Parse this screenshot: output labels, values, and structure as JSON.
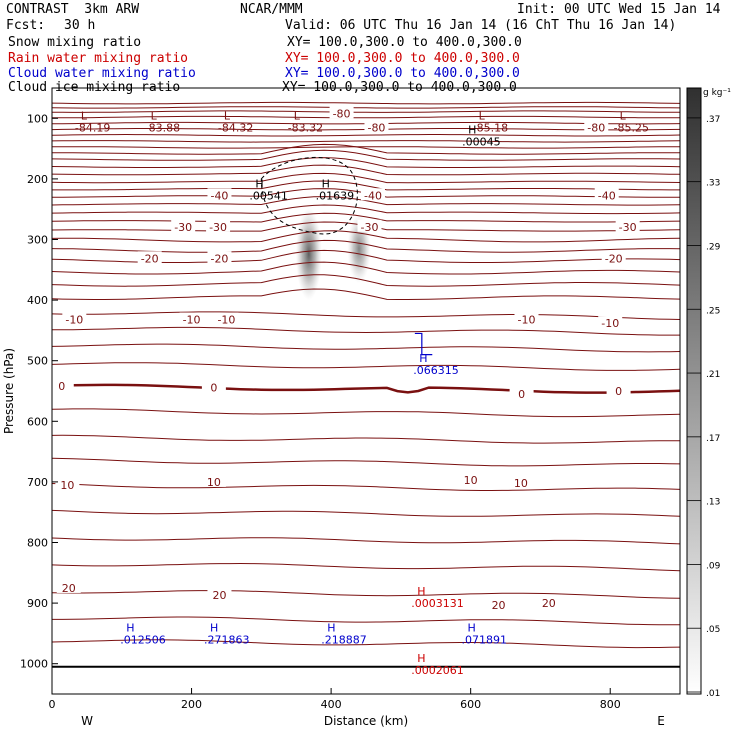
{
  "header": {
    "model": "CONTRAST  3km ARW",
    "center": "NCAR/MMM",
    "init": "Init: 00 UTC Wed 15 Jan 14",
    "fcst_label": "Fcst:",
    "fcst_value": "30 h",
    "valid": "Valid: 06 UTC Thu 16 Jan 14 (16 ChT Thu 16 Jan 14)"
  },
  "fields": [
    {
      "name": "Snow mixing ratio",
      "xy": "XY= 100.0,300.0 to 400.0,300.0",
      "color": "#000000"
    },
    {
      "name": "Rain water mixing ratio",
      "xy": "XY= 100.0,300.0 to 400.0,300.0",
      "color": "#cc0000"
    },
    {
      "name": "Cloud water mixing ratio",
      "xy": "XY= 100.0,300.0 to 400.0,300.0",
      "color": "#0000cc"
    },
    {
      "name": "Cloud ice mixing ratio",
      "xy": "XY= 100.0,300.0 to 400.0,300.0",
      "color": "#000000"
    }
  ],
  "colors": {
    "temperature": "#7a1010",
    "rain": "#cc0000",
    "cloud_water": "#0000cc",
    "ice": "#000000",
    "axis": "#000000"
  },
  "chart_data": {
    "type": "cross-section",
    "xlabel": "Distance (km)",
    "ylabel": "Pressure (hPa)",
    "xlim": [
      0,
      900
    ],
    "ylim": [
      1050,
      50
    ],
    "x_ticks": [
      0,
      200,
      400,
      600,
      800
    ],
    "y_ticks": [
      100,
      200,
      300,
      400,
      500,
      600,
      700,
      800,
      900,
      1000
    ],
    "x_ends": {
      "left": "W",
      "right": "E"
    },
    "colorbar": {
      "unit": "g kg⁻¹",
      "ticks": [
        ".37",
        ".33",
        ".29",
        ".25",
        ".21",
        ".17",
        ".13",
        ".09",
        ".05",
        ".01"
      ],
      "range": [
        0.01,
        0.39
      ]
    },
    "temperature_labels": [
      {
        "text": "-80",
        "x": 415,
        "p": 92
      },
      {
        "text": "-80",
        "x": 465,
        "p": 115
      },
      {
        "text": "-80",
        "x": 780,
        "p": 115
      },
      {
        "text": "-40",
        "x": 240,
        "p": 227
      },
      {
        "text": "-40",
        "x": 460,
        "p": 227
      },
      {
        "text": "-40",
        "x": 795,
        "p": 227
      },
      {
        "text": "-30",
        "x": 188,
        "p": 279
      },
      {
        "text": "-30",
        "x": 238,
        "p": 279
      },
      {
        "text": "-30",
        "x": 455,
        "p": 279
      },
      {
        "text": "-30",
        "x": 825,
        "p": 279
      },
      {
        "text": "-20",
        "x": 140,
        "p": 331
      },
      {
        "text": "-20",
        "x": 240,
        "p": 331
      },
      {
        "text": "-20",
        "x": 805,
        "p": 331
      },
      {
        "text": "-10",
        "x": 32,
        "p": 432
      },
      {
        "text": "-10",
        "x": 200,
        "p": 432
      },
      {
        "text": "-10",
        "x": 250,
        "p": 432
      },
      {
        "text": "-10",
        "x": 680,
        "p": 432
      },
      {
        "text": "-10",
        "x": 800,
        "p": 438
      },
      {
        "text": "0",
        "x": 14,
        "p": 542
      },
      {
        "text": "0",
        "x": 232,
        "p": 544
      },
      {
        "text": "0",
        "x": 673,
        "p": 555
      },
      {
        "text": "0",
        "x": 812,
        "p": 550
      },
      {
        "text": "10",
        "x": 22,
        "p": 705
      },
      {
        "text": "10",
        "x": 232,
        "p": 700
      },
      {
        "text": "10",
        "x": 600,
        "p": 697
      },
      {
        "text": "10",
        "x": 672,
        "p": 702
      },
      {
        "text": "20",
        "x": 24,
        "p": 875
      },
      {
        "text": "20",
        "x": 240,
        "p": 887
      },
      {
        "text": "20",
        "x": 640,
        "p": 903
      },
      {
        "text": "20",
        "x": 712,
        "p": 900
      }
    ],
    "extrema": [
      {
        "mark": "L",
        "value": "-84.19",
        "x": 50,
        "p": 115,
        "color": "temperature"
      },
      {
        "mark": "L",
        "value": "-83.88",
        "x": 150,
        "p": 115,
        "color": "temperature"
      },
      {
        "mark": "L",
        "value": "-84.32",
        "x": 255,
        "p": 115,
        "color": "temperature"
      },
      {
        "mark": "L",
        "value": "-83.32",
        "x": 355,
        "p": 115,
        "color": "temperature"
      },
      {
        "mark": "L",
        "value": "-85.18",
        "x": 620,
        "p": 115,
        "color": "temperature"
      },
      {
        "mark": "L",
        "value": "-85.25",
        "x": 822,
        "p": 115,
        "color": "temperature"
      },
      {
        "mark": "H",
        "value": ".00045",
        "x": 605,
        "p": 138,
        "color": "ice"
      },
      {
        "mark": "H",
        "value": ".00541",
        "x": 300,
        "p": 227,
        "color": "ice"
      },
      {
        "mark": "H",
        "value": ".01639",
        "x": 395,
        "p": 227,
        "color": "ice"
      },
      {
        "mark": "H",
        "value": ".066315",
        "x": 535,
        "p": 515,
        "color": "cloud_water"
      },
      {
        "mark": "H",
        "value": ".0003131",
        "x": 532,
        "p": 900,
        "color": "rain"
      },
      {
        "mark": "H",
        "value": ".012506",
        "x": 115,
        "p": 960,
        "color": "cloud_water"
      },
      {
        "mark": "H",
        "value": ".271863",
        "x": 235,
        "p": 960,
        "color": "cloud_water"
      },
      {
        "mark": "H",
        "value": ".218887",
        "x": 403,
        "p": 960,
        "color": "cloud_water"
      },
      {
        "mark": "H",
        "value": ".071891",
        "x": 604,
        "p": 960,
        "color": "cloud_water"
      },
      {
        "mark": "H",
        "value": ".0002061",
        "x": 532,
        "p": 1010,
        "color": "rain"
      }
    ],
    "temperature_lines_p_at_left": [
      75,
      82,
      89,
      98,
      108,
      118,
      128,
      138,
      148,
      158,
      168,
      180,
      192,
      205,
      217,
      229,
      242,
      256,
      270,
      285,
      301,
      318,
      335,
      354,
      374,
      396,
      420,
      446,
      474,
      505,
      542,
      582,
      626,
      664,
      705,
      748,
      792,
      835,
      880,
      924,
      962
    ],
    "snow_max_plumes": [
      {
        "x": 368,
        "p_top": 248,
        "p_bottom": 400,
        "value": 0.37
      },
      {
        "x": 440,
        "p_top": 258,
        "p_bottom": 372,
        "value": 0.2
      }
    ]
  }
}
